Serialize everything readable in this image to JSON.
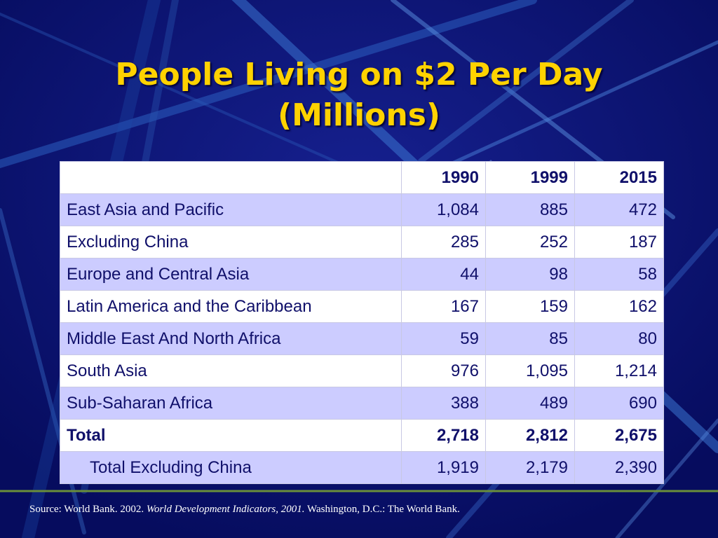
{
  "title": {
    "line1": "People Living on $2 Per Day",
    "line2": "(Millions)"
  },
  "table": {
    "headers": [
      "",
      "1990",
      "1999",
      "2015"
    ],
    "rows": [
      {
        "label": "East Asia and Pacific",
        "values": [
          "1,084",
          "885",
          "472"
        ]
      },
      {
        "label": "Excluding China",
        "values": [
          "285",
          "252",
          "187"
        ]
      },
      {
        "label": "Europe and Central Asia",
        "values": [
          "44",
          "98",
          "58"
        ]
      },
      {
        "label": "Latin America and the Caribbean",
        "values": [
          "167",
          "159",
          "162"
        ]
      },
      {
        "label": "Middle East And North Africa",
        "values": [
          "59",
          "85",
          "80"
        ]
      },
      {
        "label": "South Asia",
        "values": [
          "976",
          "1,095",
          "1,214"
        ]
      },
      {
        "label": "Sub-Saharan Africa",
        "values": [
          "388",
          "489",
          "690"
        ]
      },
      {
        "label": "Total",
        "values": [
          "2,718",
          "2,812",
          "2,675"
        ]
      },
      {
        "label": "Total Excluding China",
        "values": [
          "1,919",
          "2,179",
          "2,390"
        ]
      }
    ]
  },
  "source": {
    "prefix": "Source: World Bank. 2002. ",
    "italic": "World Development Indicators, 2001.",
    "suffix": " Washington, D.C.: The World Bank."
  },
  "colors": {
    "background": "#0a1173",
    "title": "#ffd200",
    "row_shade": "#ccccff",
    "table_text": "#10106a"
  }
}
